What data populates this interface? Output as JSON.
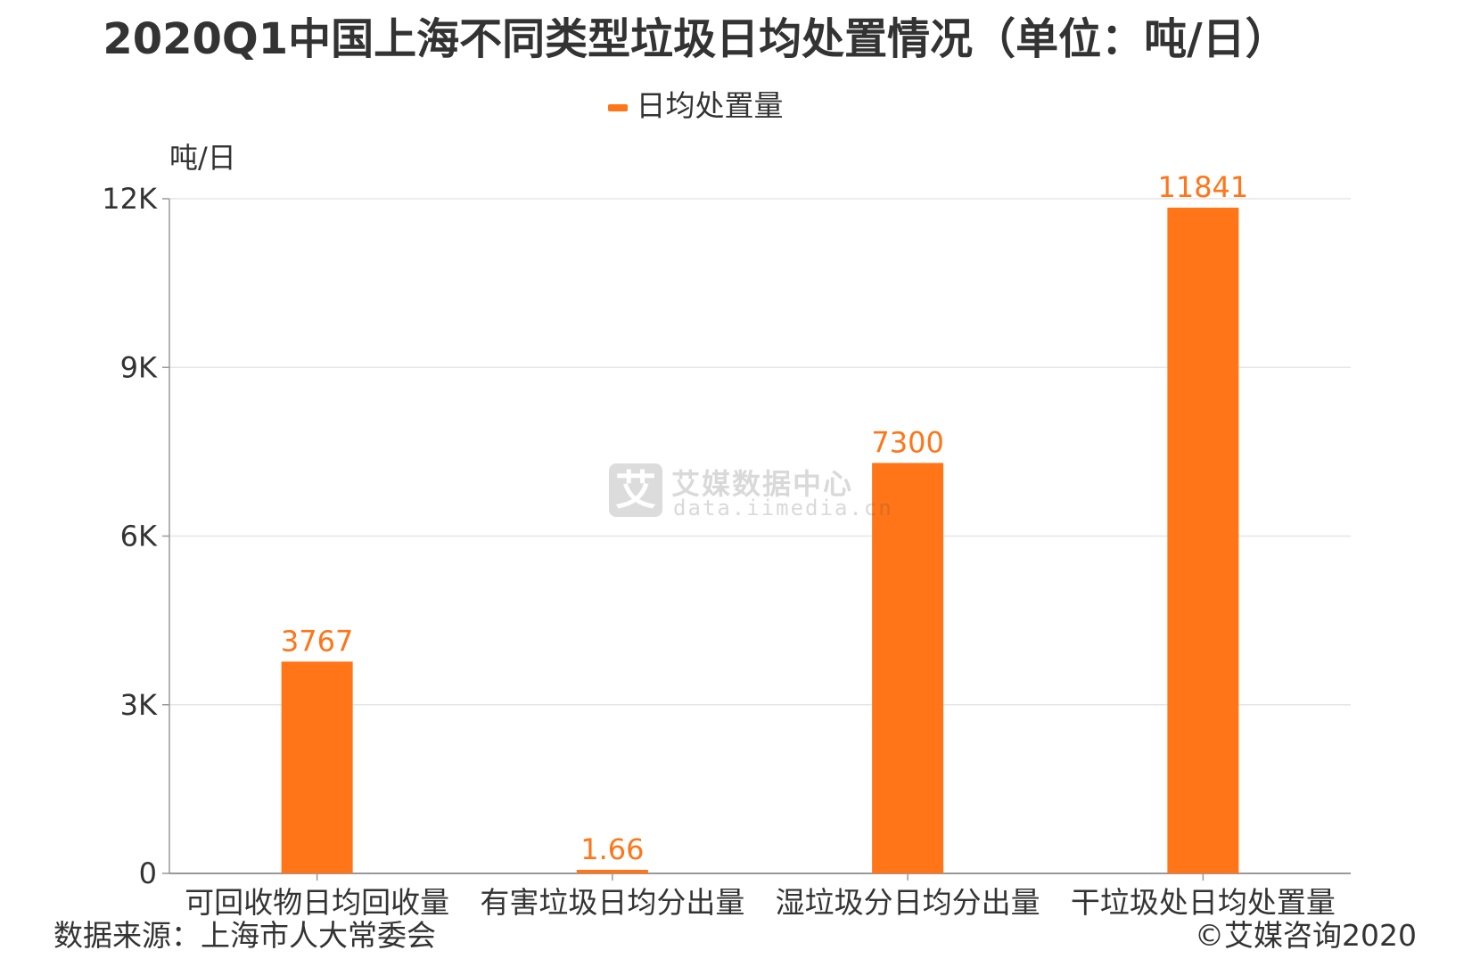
{
  "title": "2020Q1中国上海不同类型垃圾日均处置情况（单位：吨/日）",
  "legend": {
    "label": "日均处置量"
  },
  "colors": {
    "bar": "#ff7518",
    "label": "#ff7518",
    "grid": "#e6e6e6",
    "axis": "#999999"
  },
  "watermark": {
    "brand": "艾媒数据中心",
    "url": "data.iimedia.cn",
    "glyph": "艾"
  },
  "footer": {
    "source": "数据来源：上海市人大常委会",
    "copyright": "©艾媒咨询2020"
  },
  "chart_data": {
    "type": "bar",
    "categories": [
      "可回收物日均回收量",
      "有害垃圾日均分出量",
      "湿垃圾分日均分出量",
      "干垃圾处日均处置量"
    ],
    "series": [
      {
        "name": "日均处置量",
        "values": [
          3767,
          1.66,
          7300,
          11841
        ],
        "labels": [
          "3767",
          "1.66",
          "7300",
          "11841"
        ]
      }
    ],
    "ylabel": "吨/日",
    "ylim": [
      0,
      12000
    ],
    "yticks": [
      0,
      3000,
      6000,
      9000,
      12000
    ],
    "ytick_labels": [
      "0",
      "3K",
      "6K",
      "9K",
      "12K"
    ],
    "grid": true,
    "legend_position": "top-center"
  }
}
